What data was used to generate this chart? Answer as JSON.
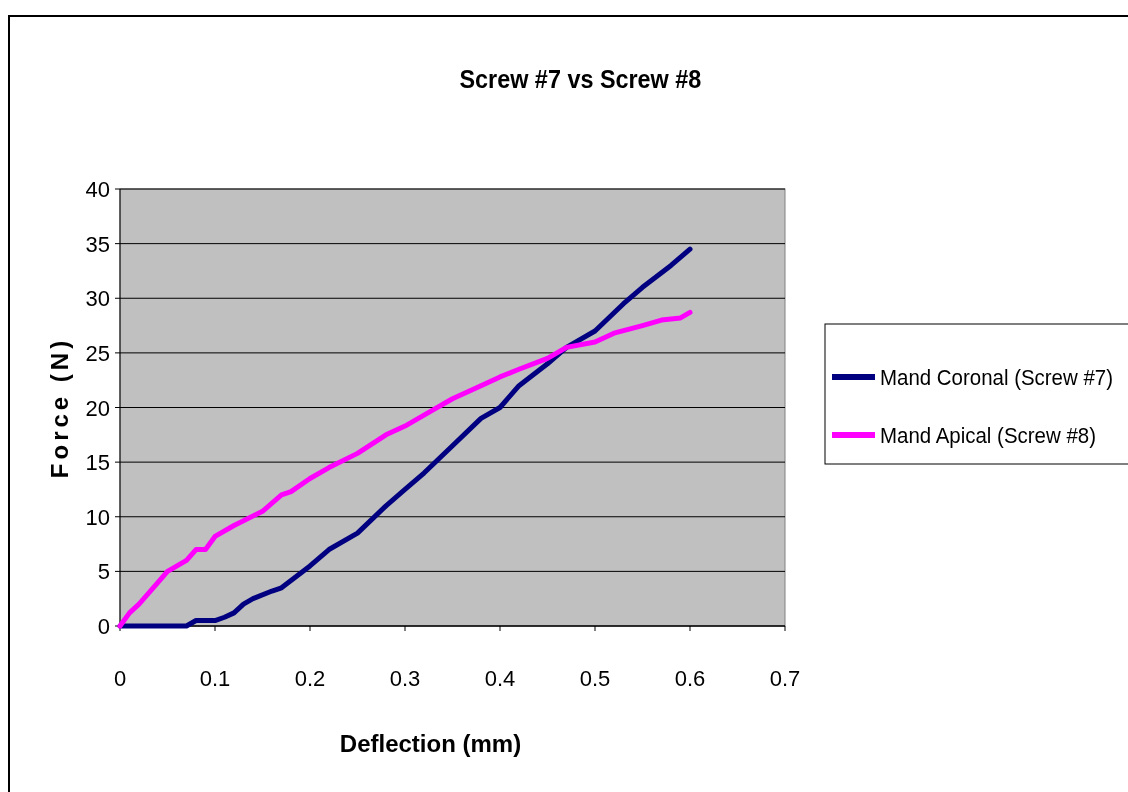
{
  "chart_data": {
    "type": "line",
    "title": "Screw #7 vs Screw #8",
    "xlabel": "Deflection (mm)",
    "ylabel": "Force (N)",
    "xlim": [
      0,
      0.7
    ],
    "xticks": [
      0,
      0.1,
      0.2,
      0.3,
      0.4,
      0.5,
      0.6,
      0.7
    ],
    "ylim": [
      0,
      40
    ],
    "yticks": [
      0,
      5,
      10,
      15,
      20,
      25,
      30,
      35,
      40
    ],
    "grid": "y",
    "legend": "right",
    "marker": "none",
    "line_style": "solid",
    "series": [
      {
        "name": "Mand Coronal (Screw #7)",
        "color": "#000080",
        "x": [
          0,
          0.03,
          0.07,
          0.08,
          0.1,
          0.11,
          0.12,
          0.13,
          0.14,
          0.16,
          0.17,
          0.2,
          0.22,
          0.25,
          0.28,
          0.3,
          0.32,
          0.35,
          0.38,
          0.4,
          0.42,
          0.45,
          0.47,
          0.5,
          0.53,
          0.55,
          0.58,
          0.6
        ],
        "values": [
          0,
          0,
          0,
          0.5,
          0.5,
          0.8,
          1.2,
          2,
          2.5,
          3.2,
          3.5,
          5.5,
          7,
          8.5,
          11,
          12.5,
          14,
          16.5,
          19,
          20,
          22,
          24,
          25.5,
          27,
          29.5,
          31,
          33,
          34.5
        ]
      },
      {
        "name": "Mand Apical (Screw #8)",
        "color": "#ff00ff",
        "x": [
          0,
          0.01,
          0.02,
          0.04,
          0.05,
          0.07,
          0.08,
          0.09,
          0.1,
          0.12,
          0.15,
          0.17,
          0.18,
          0.2,
          0.22,
          0.25,
          0.28,
          0.3,
          0.33,
          0.35,
          0.38,
          0.4,
          0.42,
          0.45,
          0.47,
          0.5,
          0.52,
          0.55,
          0.57,
          0.59,
          0.6
        ],
        "values": [
          0,
          1.2,
          2,
          4,
          5,
          6,
          7,
          7,
          8.2,
          9.2,
          10.5,
          12,
          12.3,
          13.5,
          14.5,
          15.8,
          17.5,
          18.3,
          19.8,
          20.8,
          22,
          22.8,
          23.5,
          24.5,
          25.5,
          26,
          26.8,
          27.5,
          28,
          28.2,
          28.7
        ]
      }
    ]
  }
}
